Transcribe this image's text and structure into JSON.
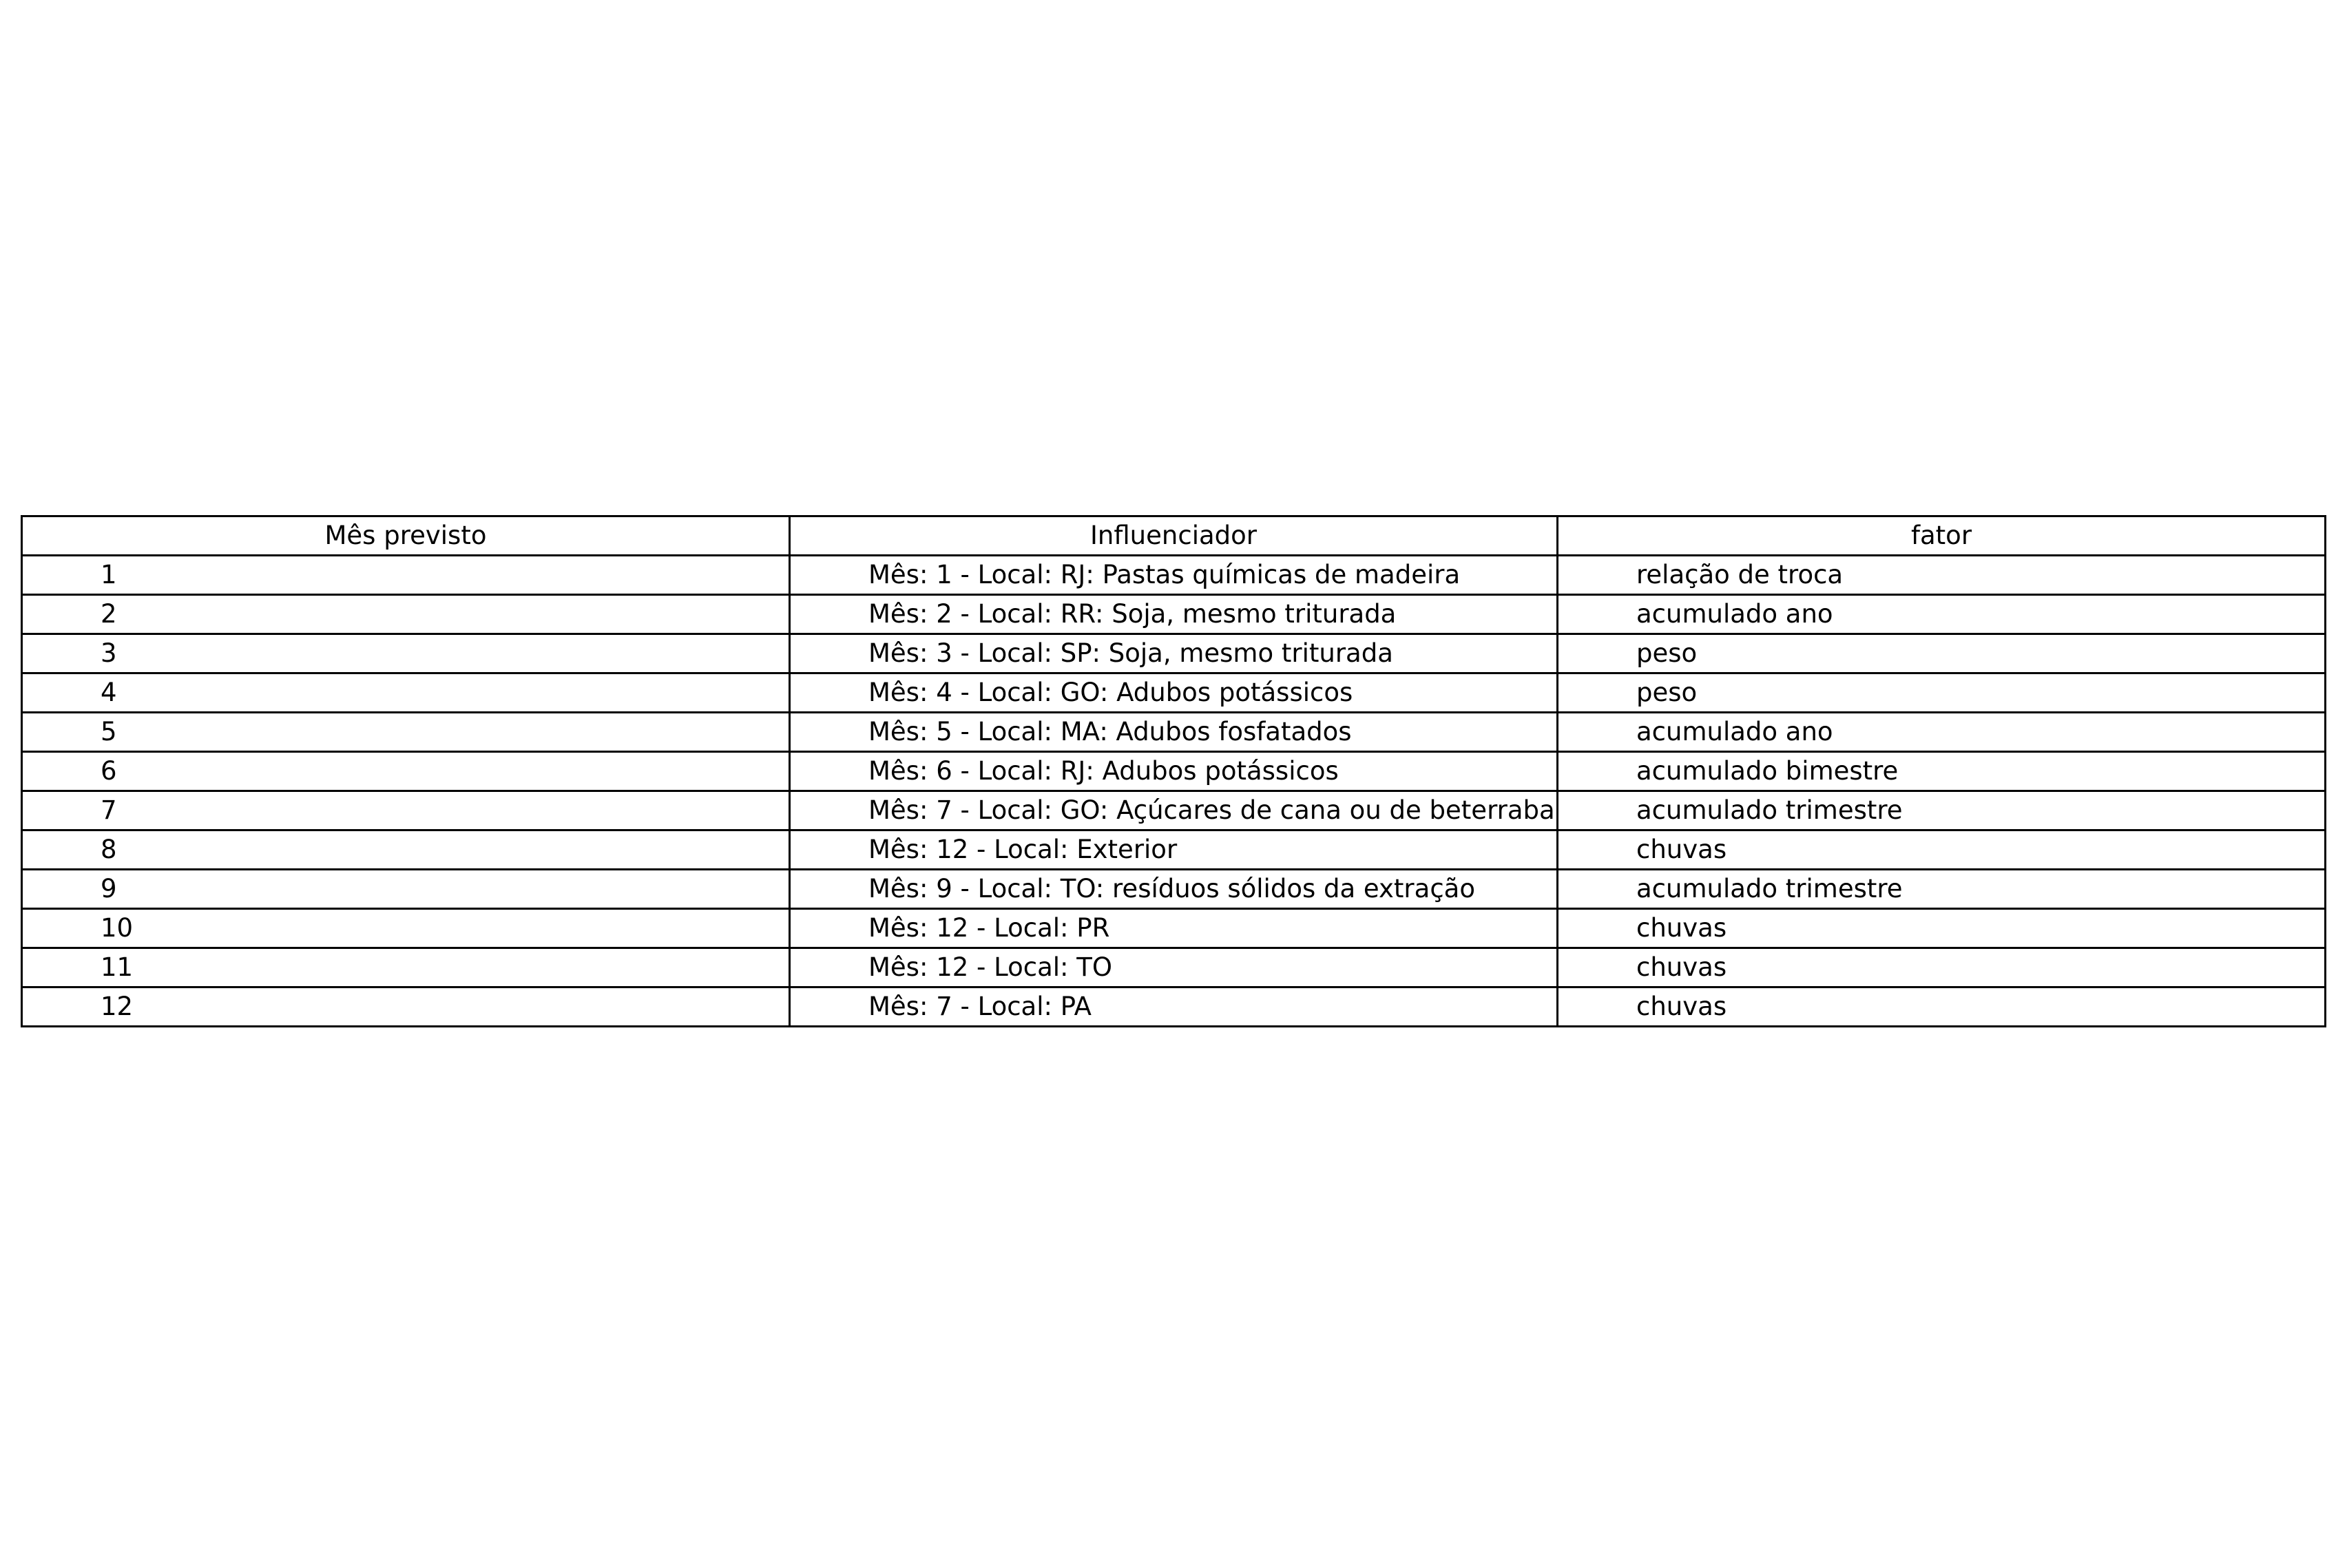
{
  "table": {
    "headers": [
      "Mês previsto",
      "Influenciador",
      "fator"
    ],
    "rows": [
      [
        "1",
        "Mês: 1 - Local: RJ: Pastas químicas de madeira",
        "relação de troca"
      ],
      [
        "2",
        "Mês: 2 - Local: RR: Soja, mesmo triturada",
        "acumulado ano"
      ],
      [
        "3",
        "Mês: 3 - Local: SP: Soja, mesmo triturada",
        "peso"
      ],
      [
        "4",
        "Mês: 4 - Local: GO: Adubos  potássicos",
        "peso"
      ],
      [
        "5",
        "Mês: 5 - Local: MA: Adubos  fosfatados",
        "acumulado ano"
      ],
      [
        "6",
        "Mês: 6 - Local: RJ: Adubos  potássicos",
        "acumulado bimestre"
      ],
      [
        "7",
        "Mês: 7 - Local: GO: Açúcares de cana ou de beterraba",
        "acumulado trimestre"
      ],
      [
        "8",
        "Mês: 12 - Local: Exterior",
        "chuvas"
      ],
      [
        "9",
        "Mês: 9 - Local: TO: resíduos sólidos da extração",
        "acumulado trimestre"
      ],
      [
        "10",
        "Mês: 12 - Local: PR",
        "chuvas"
      ],
      [
        "11",
        "Mês: 12 - Local: TO",
        "chuvas"
      ],
      [
        "12",
        "Mês: 7 - Local: PA",
        "chuvas"
      ]
    ]
  }
}
